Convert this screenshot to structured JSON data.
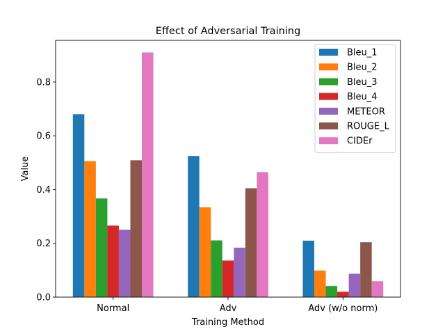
{
  "chart_data": {
    "type": "bar",
    "title": "Effect of Adversarial Training",
    "xlabel": "Training Method",
    "ylabel": "Value",
    "categories": [
      "Normal",
      "Adv",
      "Adv (w/o norm)"
    ],
    "ylim": [
      0,
      0.955
    ],
    "yticks": [
      0.0,
      0.2,
      0.4,
      0.6,
      0.8
    ],
    "ytick_labels": [
      "0.0",
      "0.2",
      "0.4",
      "0.6",
      "0.8"
    ],
    "grid": false,
    "legend_position": "top-right",
    "series": [
      {
        "name": "Bleu_1",
        "color": "#1f77b4",
        "values": [
          0.68,
          0.525,
          0.21
        ]
      },
      {
        "name": "Bleu_2",
        "color": "#ff7f0e",
        "values": [
          0.506,
          0.334,
          0.099
        ]
      },
      {
        "name": "Bleu_3",
        "color": "#2ca02c",
        "values": [
          0.367,
          0.211,
          0.041
        ]
      },
      {
        "name": "Bleu_4",
        "color": "#d62728",
        "values": [
          0.266,
          0.136,
          0.02
        ]
      },
      {
        "name": "METEOR",
        "color": "#9467bd",
        "values": [
          0.251,
          0.184,
          0.087
        ]
      },
      {
        "name": "ROUGE_L",
        "color": "#8c564b",
        "values": [
          0.509,
          0.405,
          0.204
        ]
      },
      {
        "name": "CIDEr",
        "color": "#e377c2",
        "values": [
          0.91,
          0.465,
          0.059
        ]
      }
    ]
  }
}
